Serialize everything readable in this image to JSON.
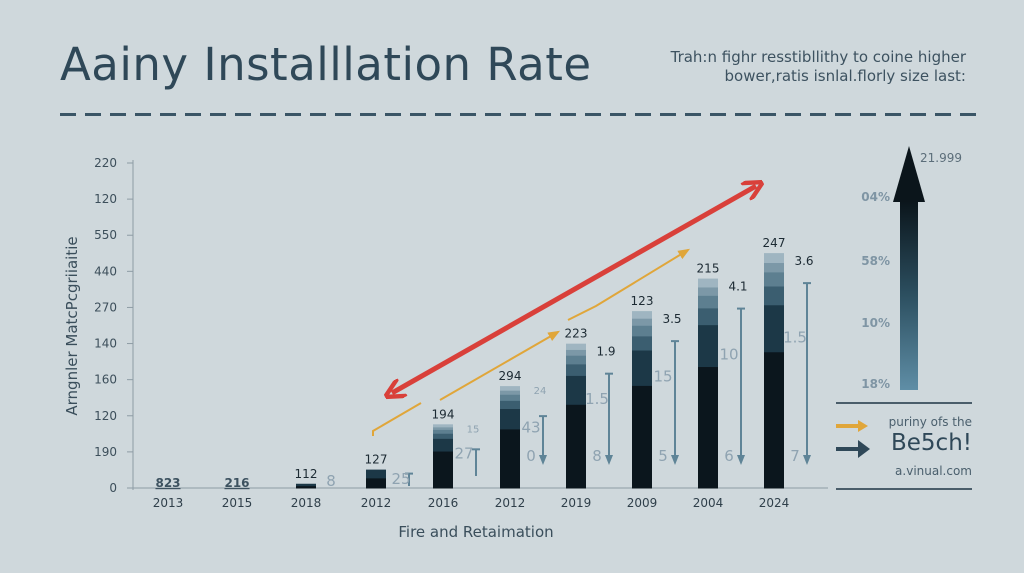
{
  "header": {
    "title": "Aainy Installlation Rate",
    "subtitle_line1": "Trah:n fighr resstibllithy to coine  higher",
    "subtitle_line2": "bower,ratis isnlal.florly size last:"
  },
  "colors": {
    "background": "#cfd8dc",
    "title": "#2f4858",
    "trend_red": "#d9403a",
    "trend_orange": "#e0a63a",
    "bar_dark": "#0d1a22",
    "bar_mid": "#1f3d4d",
    "bar_light": "#8fa9b7",
    "range_arrow": "#5f8497"
  },
  "chart_data": {
    "type": "bar",
    "title": "Aainy Installlation Rate",
    "xlabel": "Fire and Retaimation",
    "ylabel": "Arngnler MatcPcgriiaitie",
    "y_tick_labels": [
      "0",
      "190",
      "120",
      "160",
      "140",
      "270",
      "440",
      "550",
      "120",
      "220"
    ],
    "categories": [
      "2013",
      "2015",
      "2018",
      "2012",
      "2016",
      "2012",
      "2019",
      "2009",
      "2004",
      "2024"
    ],
    "values": [
      0,
      0,
      3,
      13,
      45,
      72,
      102,
      125,
      148,
      166
    ],
    "value_scale_max": 200,
    "value_labels": [
      "823",
      "216",
      "112",
      "127",
      "194",
      "294",
      "223",
      "123",
      "215",
      "247"
    ],
    "side_values": [
      {
        "top": "",
        "mid": "",
        "bottom": ""
      },
      {
        "top": "",
        "mid": "",
        "bottom": ""
      },
      {
        "top": "",
        "mid": "8",
        "bottom": ""
      },
      {
        "top": "",
        "mid": "25",
        "bottom": ""
      },
      {
        "top": "15",
        "mid": "27",
        "bottom": ""
      },
      {
        "top": "24",
        "mid": "43",
        "bottom": "0"
      },
      {
        "top": "1.9",
        "mid": "1.5",
        "bottom": "8"
      },
      {
        "top": "3.5",
        "mid": "15",
        "bottom": "5"
      },
      {
        "top": "4.1",
        "mid": "10",
        "bottom": "6"
      },
      {
        "top": "3.6",
        "mid": "1.5",
        "bottom": "7"
      }
    ],
    "trend_lines": [
      {
        "name": "red-trend",
        "direction": "bidirectional",
        "color": "#d9403a"
      },
      {
        "name": "orange-trend",
        "direction": "up",
        "color": "#e0a63a"
      }
    ],
    "side_gauge": {
      "top_label": "21.999",
      "labels": [
        "04%",
        "58%",
        "10%",
        "18%"
      ]
    },
    "grid": false
  },
  "legend": {
    "line1": "puriny ofs the",
    "line2": "Be5ch!",
    "line3": "a.vinual.com"
  }
}
